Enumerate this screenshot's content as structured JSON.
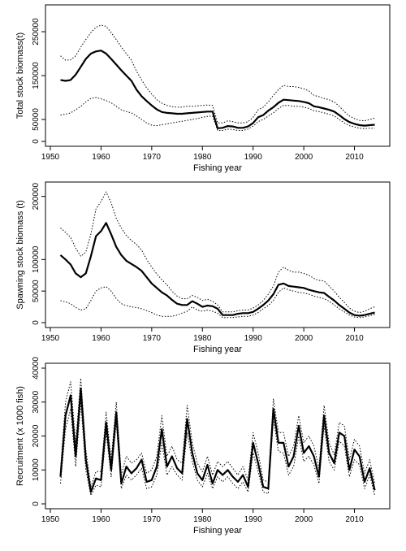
{
  "chart_data": [
    {
      "type": "line",
      "xlabel": "Fishing year",
      "ylabel": "Total stock biomass(t)",
      "xlim": [
        1950,
        2016
      ],
      "ylim": [
        0,
        300000
      ],
      "xticks": [
        1950,
        1960,
        1970,
        1980,
        1990,
        2000,
        2010
      ],
      "yticks": [
        0,
        50000,
        150000,
        250000
      ],
      "x": [
        1952,
        1953,
        1954,
        1955,
        1956,
        1957,
        1958,
        1959,
        1960,
        1961,
        1962,
        1963,
        1964,
        1965,
        1966,
        1967,
        1968,
        1969,
        1970,
        1971,
        1972,
        1973,
        1974,
        1975,
        1976,
        1977,
        1978,
        1979,
        1980,
        1981,
        1982,
        1983,
        1984,
        1985,
        1986,
        1987,
        1988,
        1989,
        1990,
        1991,
        1992,
        1993,
        1994,
        1995,
        1996,
        1997,
        1998,
        1999,
        2000,
        2001,
        2002,
        2003,
        2004,
        2005,
        2006,
        2007,
        2008,
        2009,
        2010,
        2011,
        2012,
        2013,
        2014
      ],
      "series": [
        {
          "values": [
            140000,
            138000,
            140000,
            152000,
            170000,
            188000,
            200000,
            205000,
            207000,
            200000,
            188000,
            175000,
            162000,
            150000,
            138000,
            118000,
            103000,
            92000,
            82000,
            73000,
            67000,
            65000,
            64000,
            63000,
            63000,
            64000,
            65000,
            66000,
            67000,
            68000,
            68000,
            30000,
            31000,
            35000,
            34000,
            31000,
            31000,
            34000,
            42000,
            55000,
            60000,
            70000,
            78000,
            88000,
            95000,
            94000,
            93000,
            92000,
            90000,
            87000,
            80000,
            78000,
            75000,
            72000,
            68000,
            60000,
            51000,
            44000,
            40000,
            37000,
            36000,
            37000,
            38000
          ]
        },
        {
          "values": [
            195000,
            185000,
            186000,
            195000,
            215000,
            232000,
            248000,
            260000,
            265000,
            262000,
            248000,
            232000,
            215000,
            200000,
            185000,
            160000,
            140000,
            122000,
            108000,
            95000,
            87000,
            82000,
            79000,
            78000,
            78000,
            80000,
            80000,
            81000,
            82000,
            83000,
            82000,
            42000,
            42000,
            47000,
            45000,
            42000,
            42000,
            45000,
            55000,
            72000,
            78000,
            90000,
            105000,
            118000,
            128000,
            125000,
            125000,
            123000,
            120000,
            115000,
            105000,
            102000,
            98000,
            95000,
            90000,
            80000,
            68000,
            58000,
            52000,
            48000,
            47000,
            50000,
            53000
          ]
        },
        {
          "values": [
            60000,
            62000,
            65000,
            72000,
            80000,
            90000,
            98000,
            100000,
            97000,
            93000,
            88000,
            80000,
            72000,
            68000,
            65000,
            58000,
            50000,
            42000,
            37000,
            36000,
            38000,
            40000,
            42000,
            44000,
            46000,
            48000,
            50000,
            52000,
            55000,
            57000,
            58000,
            25000,
            25000,
            28000,
            27000,
            25000,
            25000,
            28000,
            35000,
            45000,
            50000,
            58000,
            65000,
            75000,
            82000,
            82000,
            80000,
            80000,
            78000,
            75000,
            70000,
            68000,
            65000,
            62000,
            58000,
            50000,
            42000,
            36000,
            33000,
            30000,
            29000,
            30000,
            30000
          ]
        }
      ]
    },
    {
      "type": "line",
      "xlabel": "Fishing year",
      "ylabel": "Spawning stock biomass (t)",
      "xlim": [
        1950,
        2016
      ],
      "ylim": [
        0,
        215000
      ],
      "xticks": [
        1950,
        1960,
        1970,
        1980,
        1990,
        2000,
        2010
      ],
      "yticks": [
        0,
        50000,
        100000,
        200000
      ],
      "x": [
        1952,
        1953,
        1954,
        1955,
        1956,
        1957,
        1958,
        1959,
        1960,
        1961,
        1962,
        1963,
        1964,
        1965,
        1966,
        1967,
        1968,
        1969,
        1970,
        1971,
        1972,
        1973,
        1974,
        1975,
        1976,
        1977,
        1978,
        1979,
        1980,
        1981,
        1982,
        1983,
        1984,
        1985,
        1986,
        1987,
        1988,
        1989,
        1990,
        1991,
        1992,
        1993,
        1994,
        1995,
        1996,
        1997,
        1998,
        1999,
        2000,
        2001,
        2002,
        2003,
        2004,
        2005,
        2006,
        2007,
        2008,
        2009,
        2010,
        2011,
        2012,
        2013,
        2014
      ],
      "series": [
        {
          "values": [
            107000,
            100000,
            92000,
            78000,
            72000,
            78000,
            105000,
            137000,
            145000,
            158000,
            140000,
            120000,
            107000,
            98000,
            93000,
            88000,
            82000,
            72000,
            62000,
            55000,
            48000,
            43000,
            36000,
            30000,
            28000,
            28000,
            34000,
            30000,
            25000,
            27000,
            26000,
            22000,
            12000,
            12000,
            12000,
            14000,
            15000,
            15000,
            17000,
            22000,
            28000,
            35000,
            45000,
            60000,
            62000,
            58000,
            57000,
            56000,
            55000,
            52000,
            50000,
            48000,
            47000,
            41000,
            35000,
            28000,
            22000,
            16000,
            12000,
            11000,
            12000,
            14000,
            16000
          ]
        },
        {
          "values": [
            150000,
            143000,
            135000,
            118000,
            105000,
            112000,
            140000,
            180000,
            192000,
            207000,
            190000,
            165000,
            150000,
            138000,
            130000,
            124000,
            115000,
            100000,
            88000,
            77000,
            68000,
            60000,
            50000,
            42000,
            38000,
            38000,
            43000,
            40000,
            35000,
            37000,
            34000,
            28000,
            17000,
            17000,
            17000,
            19000,
            20000,
            20000,
            23000,
            28000,
            35000,
            45000,
            58000,
            80000,
            88000,
            83000,
            80000,
            80000,
            78000,
            75000,
            70000,
            67000,
            66000,
            58000,
            50000,
            40000,
            32000,
            23000,
            18000,
            16000,
            18000,
            22000,
            25000
          ]
        },
        {
          "values": [
            35000,
            33000,
            30000,
            24000,
            20000,
            22000,
            35000,
            50000,
            55000,
            57000,
            50000,
            38000,
            30000,
            27000,
            25000,
            24000,
            22000,
            19000,
            16000,
            12000,
            10000,
            10000,
            10000,
            12000,
            15000,
            18000,
            25000,
            20000,
            18000,
            20000,
            18000,
            15000,
            8000,
            8000,
            8000,
            9000,
            10000,
            10000,
            12000,
            16000,
            22000,
            27000,
            35000,
            48000,
            55000,
            52000,
            50000,
            48000,
            47000,
            45000,
            42000,
            40000,
            38000,
            34000,
            28000,
            22000,
            17000,
            12000,
            9000,
            8000,
            9000,
            11000,
            13000
          ]
        }
      ]
    },
    {
      "type": "line",
      "xlabel": "Fishing year",
      "ylabel": "Recruitment (x 1000 fish)",
      "xlim": [
        1950,
        2016
      ],
      "ylim": [
        0,
        40000
      ],
      "xticks": [
        1950,
        1960,
        1970,
        1980,
        1990,
        2000,
        2010
      ],
      "yticks": [
        0,
        10000,
        20000,
        30000,
        40000
      ],
      "x": [
        1952,
        1953,
        1954,
        1955,
        1956,
        1957,
        1958,
        1959,
        1960,
        1961,
        1962,
        1963,
        1964,
        1965,
        1966,
        1967,
        1968,
        1969,
        1970,
        1971,
        1972,
        1973,
        1974,
        1975,
        1976,
        1977,
        1978,
        1979,
        1980,
        1981,
        1982,
        1983,
        1984,
        1985,
        1986,
        1987,
        1988,
        1989,
        1990,
        1991,
        1992,
        1993,
        1994,
        1995,
        1996,
        1997,
        1998,
        1999,
        2000,
        2001,
        2002,
        2003,
        2004,
        2005,
        2006,
        2007,
        2008,
        2009,
        2010,
        2011,
        2012,
        2013,
        2014
      ],
      "series": [
        {
          "values": [
            8000,
            26000,
            32000,
            14000,
            34000,
            13000,
            3500,
            7500,
            7000,
            24000,
            10000,
            27000,
            6000,
            11000,
            9000,
            10500,
            13000,
            6500,
            7000,
            11000,
            22000,
            11000,
            14000,
            10500,
            9000,
            25000,
            15000,
            9000,
            7000,
            11500,
            6000,
            10000,
            8500,
            10000,
            8000,
            6500,
            8500,
            5000,
            18000,
            12000,
            5000,
            4500,
            28000,
            18000,
            18000,
            11000,
            14000,
            23000,
            15000,
            17000,
            14000,
            8000,
            26000,
            15000,
            12000,
            21000,
            20000,
            10000,
            16000,
            14000,
            6500,
            10500,
            4000
          ]
        },
        {
          "values": [
            10000,
            30000,
            36000,
            18000,
            37000,
            16000,
            5000,
            9500,
            9500,
            27000,
            13000,
            30000,
            8500,
            14000,
            12000,
            13000,
            15000,
            9000,
            10000,
            14000,
            26000,
            14000,
            17000,
            13000,
            12000,
            29000,
            18000,
            12000,
            9500,
            14000,
            8500,
            12500,
            11000,
            12500,
            10500,
            8500,
            11000,
            7000,
            21000,
            15000,
            7000,
            6500,
            31000,
            21000,
            21000,
            14000,
            17000,
            26000,
            18000,
            20000,
            17000,
            10500,
            29000,
            18000,
            14500,
            24000,
            23000,
            13000,
            19000,
            17000,
            9000,
            13000,
            6000
          ]
        },
        {
          "values": [
            6000,
            22000,
            28000,
            11000,
            30000,
            10000,
            2500,
            5500,
            5000,
            21000,
            8000,
            24000,
            4500,
            8500,
            7000,
            8500,
            10500,
            4500,
            5000,
            8500,
            18000,
            8500,
            11000,
            8500,
            7000,
            21000,
            12500,
            7000,
            5000,
            9000,
            4500,
            8000,
            6500,
            8000,
            6000,
            4500,
            6500,
            3500,
            15000,
            9500,
            3500,
            3000,
            25000,
            15500,
            15000,
            8500,
            11000,
            20000,
            12500,
            14000,
            11500,
            6000,
            23000,
            12500,
            10000,
            18500,
            17000,
            8000,
            13000,
            11500,
            4500,
            8500,
            2500
          ]
        }
      ]
    }
  ]
}
